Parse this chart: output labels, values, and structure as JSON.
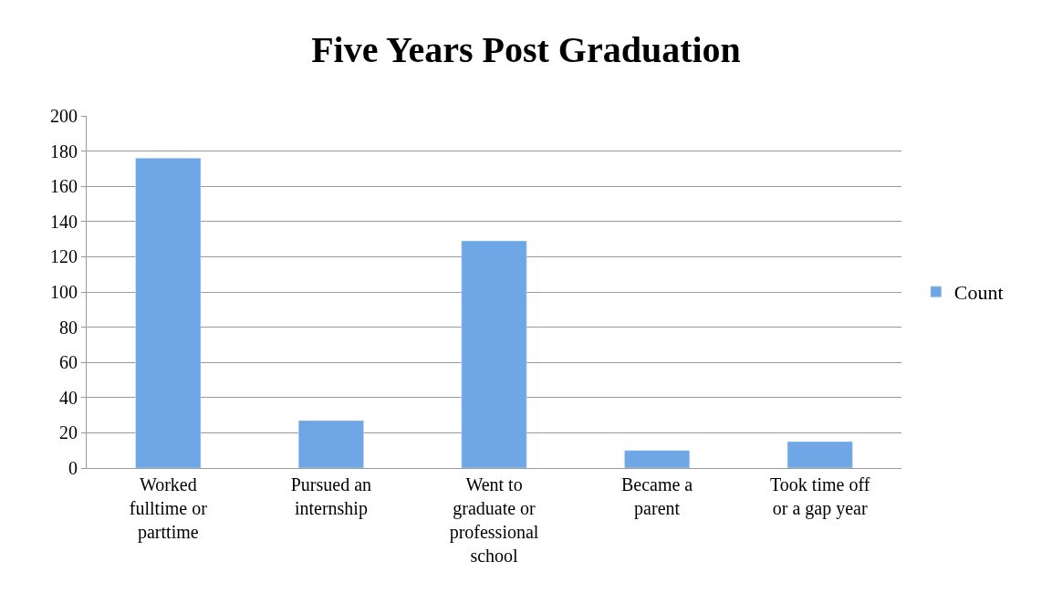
{
  "chart_data": {
    "type": "bar",
    "title": "Five Years Post Graduation",
    "categories": [
      "Worked fulltime or parttime",
      "Pursued an internship",
      "Went to graduate or professional school",
      "Became a parent",
      "Took time off or a gap year"
    ],
    "series": [
      {
        "name": "Count",
        "color": "#6fa6e6",
        "values": [
          176,
          27,
          129,
          10,
          15
        ]
      }
    ],
    "ylim": [
      0,
      200
    ],
    "yticks": [
      0,
      20,
      40,
      60,
      80,
      100,
      120,
      140,
      160,
      180,
      200
    ],
    "grid": "y",
    "legend": "right"
  }
}
